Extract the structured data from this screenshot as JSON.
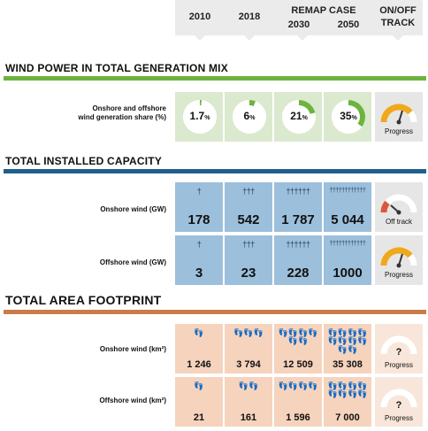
{
  "header": {
    "y2010": "2010",
    "y2018": "2018",
    "remap_case": "REMAP CASE",
    "y2030": "2030",
    "y2050": "2050",
    "onoff_line1": "ON/OFF",
    "onoff_line2": "TRACK"
  },
  "colors": {
    "green": "#6db33f",
    "blue": "#1f5f8b",
    "orange": "#c97b4a",
    "gauge_good": "#f0a81c",
    "gauge_bad": "#d9583b"
  },
  "sections": {
    "wind_power": {
      "title": "WIND POWER IN TOTAL GENERATION MIX",
      "row_label_line1": "Onshore and offshore",
      "row_label_line2": "wind generation share (%)",
      "track_label": "Progress"
    },
    "capacity": {
      "title": "TOTAL INSTALLED CAPACITY",
      "onshore_label": "Onshore wind (GW)",
      "offshore_label": "Offshore wind (GW)",
      "onshore_track": "Off track",
      "offshore_track": "Progress"
    },
    "footprint": {
      "title": "TOTAL AREA FOOTPRINT",
      "onshore_label": "Onshore wind (km²)",
      "offshore_label": "Offshore wind (km²)",
      "onshore_track": "Progress",
      "offshore_track": "Progress",
      "question": "?"
    }
  },
  "chart_data": [
    {
      "type": "table",
      "title": "WIND POWER IN TOTAL GENERATION MIX",
      "categories": [
        "2010",
        "2018",
        "2030",
        "2050"
      ],
      "series": [
        {
          "name": "Onshore and offshore wind generation share (%)",
          "values": [
            1.7,
            6,
            21,
            35
          ],
          "display": [
            "1.7",
            "6",
            "21",
            "35"
          ],
          "unit": "%",
          "status": "Progress"
        }
      ]
    },
    {
      "type": "table",
      "title": "TOTAL INSTALLED CAPACITY",
      "categories": [
        "2010",
        "2018",
        "2030",
        "2050"
      ],
      "series": [
        {
          "name": "Onshore wind (GW)",
          "values": [
            178,
            542,
            1787,
            5044
          ],
          "display": [
            "178",
            "542",
            "1 787",
            "5 044"
          ],
          "status": "Off track"
        },
        {
          "name": "Offshore wind (GW)",
          "values": [
            3,
            23,
            228,
            1000
          ],
          "display": [
            "3",
            "23",
            "228",
            "1000"
          ],
          "status": "Progress"
        }
      ]
    },
    {
      "type": "table",
      "title": "TOTAL AREA FOOTPRINT",
      "categories": [
        "2010",
        "2018",
        "2030",
        "2050"
      ],
      "series": [
        {
          "name": "Onshore wind (km²)",
          "values": [
            1246,
            3794,
            12509,
            35308
          ],
          "display": [
            "1 246",
            "3 794",
            "12 509",
            "35 308"
          ],
          "status": "Progress"
        },
        {
          "name": "Offshore wind (km²)",
          "values": [
            21,
            161,
            1596,
            7000
          ],
          "display": [
            "21",
            "161",
            "1 596",
            "7 000"
          ],
          "status": "Progress"
        }
      ]
    }
  ]
}
